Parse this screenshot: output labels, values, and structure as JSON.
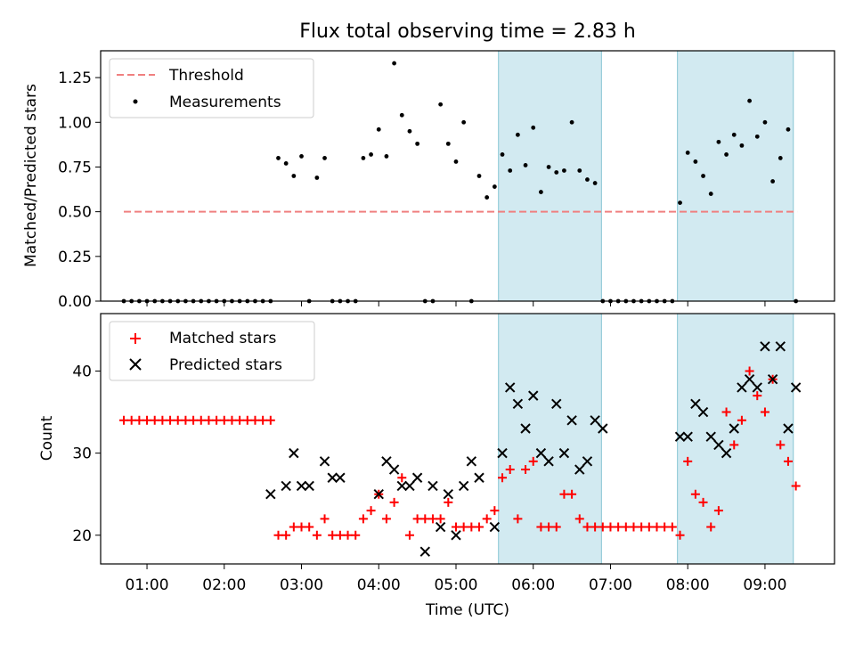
{
  "chart_data": {
    "title": "Flux total observing time = 2.83 h",
    "xlabel": "Time (UTC)",
    "x_unit": "hours UTC",
    "xticks": [
      "01:00",
      "02:00",
      "03:00",
      "04:00",
      "05:00",
      "06:00",
      "07:00",
      "08:00",
      "09:00"
    ],
    "xlim": [
      "00:24",
      "09:54"
    ],
    "shaded_intervals": [
      [
        "05:33",
        "06:53"
      ],
      [
        "07:52",
        "09:22"
      ]
    ],
    "shade_color": "#add8e6",
    "panels": [
      {
        "type": "scatter",
        "ylabel": "Matched/Predicted stars",
        "ylim": [
          0,
          1.4
        ],
        "yticks": [
          "0.00",
          "0.25",
          "0.50",
          "0.75",
          "1.00",
          "1.25"
        ],
        "legend_position": "upper-left",
        "series": [
          {
            "name": "Threshold",
            "style": "dashed-line",
            "color": "#f08080",
            "x": [
              "00:42",
              "09:25"
            ],
            "y": [
              0.5,
              0.5
            ]
          },
          {
            "name": "Measurements",
            "style": "dot",
            "color": "#000000",
            "x": [
              "00:42",
              "00:48",
              "00:54",
              "01:00",
              "01:06",
              "01:12",
              "01:18",
              "01:24",
              "01:30",
              "01:36",
              "01:42",
              "01:48",
              "01:54",
              "02:00",
              "02:06",
              "02:12",
              "02:18",
              "02:24",
              "02:30",
              "02:36",
              "02:42",
              "02:48",
              "02:54",
              "03:00",
              "03:06",
              "03:12",
              "03:18",
              "03:24",
              "03:30",
              "03:36",
              "03:42",
              "03:48",
              "03:54",
              "04:00",
              "04:06",
              "04:12",
              "04:18",
              "04:24",
              "04:30",
              "04:36",
              "04:42",
              "04:48",
              "04:54",
              "05:00",
              "05:06",
              "05:12",
              "05:18",
              "05:24",
              "05:30",
              "05:36",
              "05:42",
              "05:48",
              "05:54",
              "06:00",
              "06:06",
              "06:12",
              "06:18",
              "06:24",
              "06:30",
              "06:36",
              "06:42",
              "06:48",
              "06:54",
              "07:00",
              "07:06",
              "07:12",
              "07:18",
              "07:24",
              "07:30",
              "07:36",
              "07:42",
              "07:48",
              "07:54",
              "08:00",
              "08:06",
              "08:12",
              "08:18",
              "08:24",
              "08:30",
              "08:36",
              "08:42",
              "08:48",
              "08:54",
              "09:00",
              "09:06",
              "09:12",
              "09:18",
              "09:24"
            ],
            "y": [
              0,
              0,
              0,
              0,
              0,
              0,
              0,
              0,
              0,
              0,
              0,
              0,
              0,
              0,
              0,
              0,
              0,
              0,
              0,
              0,
              0.8,
              0.77,
              0.7,
              0.81,
              0,
              0.69,
              0.8,
              0,
              0,
              0,
              0,
              0.8,
              0.82,
              0.96,
              0.81,
              1.33,
              1.04,
              0.95,
              0.88,
              0,
              0,
              1.1,
              0.88,
              0.78,
              1.0,
              0,
              0.7,
              0.58,
              0.64,
              0.82,
              0.73,
              0.93,
              0.76,
              0.97,
              0.61,
              0.75,
              0.72,
              0.73,
              1.0,
              0.73,
              0.68,
              0.66,
              0,
              0,
              0,
              0,
              0,
              0,
              0,
              0,
              0,
              0,
              0.55,
              0.83,
              0.78,
              0.7,
              0.6,
              0.89,
              0.82,
              0.93,
              0.87,
              1.12,
              0.92,
              1.0,
              0.67,
              0.8,
              0.96,
              0
            ]
          }
        ]
      },
      {
        "type": "scatter",
        "ylabel": "Count",
        "ylim": [
          16.5,
          47
        ],
        "yticks": [
          "20",
          "30",
          "40"
        ],
        "legend_position": "upper-left",
        "series": [
          {
            "name": "Matched stars",
            "style": "plus",
            "color": "#ff0000",
            "x": [
              "00:42",
              "00:48",
              "00:54",
              "01:00",
              "01:06",
              "01:12",
              "01:18",
              "01:24",
              "01:30",
              "01:36",
              "01:42",
              "01:48",
              "01:54",
              "02:00",
              "02:06",
              "02:12",
              "02:18",
              "02:24",
              "02:30",
              "02:36",
              "02:42",
              "02:48",
              "02:54",
              "03:00",
              "03:06",
              "03:12",
              "03:18",
              "03:24",
              "03:30",
              "03:36",
              "03:42",
              "03:48",
              "03:54",
              "04:00",
              "04:06",
              "04:12",
              "04:18",
              "04:24",
              "04:30",
              "04:36",
              "04:42",
              "04:48",
              "04:54",
              "05:00",
              "05:06",
              "05:12",
              "05:18",
              "05:24",
              "05:30",
              "05:36",
              "05:42",
              "05:48",
              "05:54",
              "06:00",
              "06:06",
              "06:12",
              "06:18",
              "06:24",
              "06:30",
              "06:36",
              "06:42",
              "06:48",
              "06:54",
              "07:00",
              "07:06",
              "07:12",
              "07:18",
              "07:24",
              "07:30",
              "07:36",
              "07:42",
              "07:48",
              "07:54",
              "08:00",
              "08:06",
              "08:12",
              "08:18",
              "08:24",
              "08:30",
              "08:36",
              "08:42",
              "08:48",
              "08:54",
              "09:00",
              "09:06",
              "09:12",
              "09:18",
              "09:24"
            ],
            "y": [
              34,
              34,
              34,
              34,
              34,
              34,
              34,
              34,
              34,
              34,
              34,
              34,
              34,
              34,
              34,
              34,
              34,
              34,
              34,
              34,
              20,
              20,
              21,
              21,
              21,
              20,
              22,
              20,
              20,
              20,
              20,
              22,
              23,
              25,
              22,
              24,
              27,
              20,
              22,
              22,
              22,
              22,
              24,
              21,
              21,
              21,
              21,
              22,
              23,
              27,
              28,
              22,
              28,
              29,
              21,
              21,
              21,
              25,
              25,
              22,
              21,
              21,
              21,
              21,
              21,
              21,
              21,
              21,
              21,
              21,
              21,
              21,
              20,
              29,
              25,
              24,
              21,
              23,
              35,
              31,
              34,
              40,
              37,
              35,
              39,
              31,
              29,
              26
            ]
          },
          {
            "name": "Predicted stars",
            "style": "x",
            "color": "#000000",
            "x": [
              "02:36",
              "02:48",
              "02:54",
              "03:00",
              "03:06",
              "03:18",
              "03:24",
              "03:30",
              "04:00",
              "04:06",
              "04:12",
              "04:18",
              "04:24",
              "04:30",
              "04:36",
              "04:42",
              "04:48",
              "04:54",
              "05:00",
              "05:06",
              "05:12",
              "05:18",
              "05:30",
              "05:36",
              "05:42",
              "05:48",
              "05:54",
              "06:00",
              "06:06",
              "06:12",
              "06:18",
              "06:24",
              "06:30",
              "06:36",
              "06:42",
              "06:48",
              "06:54",
              "07:54",
              "08:00",
              "08:06",
              "08:12",
              "08:18",
              "08:24",
              "08:30",
              "08:36",
              "08:42",
              "08:48",
              "08:54",
              "09:00",
              "09:06",
              "09:12",
              "09:18",
              "09:24"
            ],
            "y": [
              25,
              26,
              30,
              26,
              26,
              29,
              27,
              27,
              25,
              29,
              28,
              26,
              26,
              27,
              18,
              26,
              21,
              25,
              20,
              26,
              29,
              27,
              21,
              30,
              38,
              36,
              33,
              37,
              30,
              29,
              36,
              30,
              34,
              28,
              29,
              34,
              33,
              32,
              32,
              36,
              35,
              32,
              31,
              30,
              33,
              38,
              39,
              38,
              43,
              39,
              43,
              33,
              38
            ]
          }
        ]
      }
    ]
  }
}
